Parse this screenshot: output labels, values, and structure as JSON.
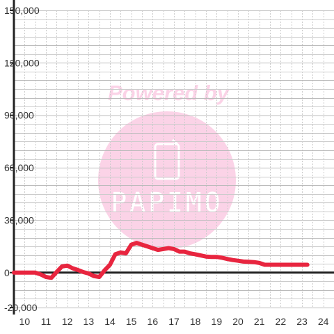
{
  "chart_data": {
    "type": "line",
    "title": "",
    "xlabel": "",
    "ylabel": "",
    "xlim": [
      9.5,
      24.5
    ],
    "ylim": [
      -20000,
      150000
    ],
    "x_ticks": [
      10,
      11,
      12,
      13,
      14,
      15,
      16,
      17,
      18,
      19,
      20,
      21,
      22,
      23,
      24
    ],
    "x_tick_labels": [
      "10",
      "11",
      "12",
      "13",
      "14",
      "15",
      "16",
      "17",
      "18",
      "19",
      "20",
      "21",
      "22",
      "23",
      "24"
    ],
    "y_ticks": [
      -20000,
      0,
      30000,
      60000,
      90000,
      120000,
      150000
    ],
    "y_tick_labels": [
      "-20,000",
      "0",
      "30,000",
      "60,000",
      "90,000",
      "120,000",
      "150,000"
    ],
    "grid": true,
    "legend": "none",
    "series": [
      {
        "color": "#e8253f",
        "x": [
          9.5,
          10.0,
          10.5,
          10.75,
          11.0,
          11.25,
          11.5,
          11.75,
          12.0,
          12.25,
          12.5,
          12.75,
          13.0,
          13.25,
          13.5,
          13.75,
          14.0,
          14.25,
          14.5,
          14.75,
          15.0,
          15.25,
          15.5,
          15.75,
          16.0,
          16.25,
          16.5,
          16.75,
          17.0,
          17.25,
          17.5,
          17.75,
          18.0,
          18.25,
          18.5,
          18.75,
          19.0,
          19.25,
          19.5,
          19.75,
          20.0,
          20.25,
          20.5,
          20.75,
          21.0,
          21.25,
          21.5,
          21.75,
          22.0,
          22.25,
          22.5,
          22.75,
          23.0,
          23.25
        ],
        "values": [
          0,
          0,
          0,
          -1000,
          -2500,
          -3000,
          300,
          3500,
          4000,
          2500,
          1500,
          300,
          -500,
          -2000,
          -2500,
          1300,
          4500,
          10500,
          11500,
          11000,
          16000,
          17000,
          16000,
          15000,
          14000,
          13000,
          13500,
          14000,
          13500,
          12000,
          12000,
          11000,
          10500,
          9800,
          9200,
          9000,
          9000,
          8500,
          7800,
          7200,
          6800,
          6300,
          6200,
          6000,
          5500,
          4500,
          4500,
          4500,
          4500,
          4500,
          4500,
          4500,
          4500,
          4500
        ]
      }
    ]
  },
  "watermark": {
    "text": "Powered by",
    "logo_text": "PAPIMO",
    "text_color": "#fbd3e7",
    "circle_color": "#fbd3e7",
    "logo_color": "#ffffff"
  },
  "colors": {
    "axis": "#222222",
    "grid_minor": "#cccccc",
    "grid_major": "#bbbbbb",
    "zero_line": "#222222"
  }
}
